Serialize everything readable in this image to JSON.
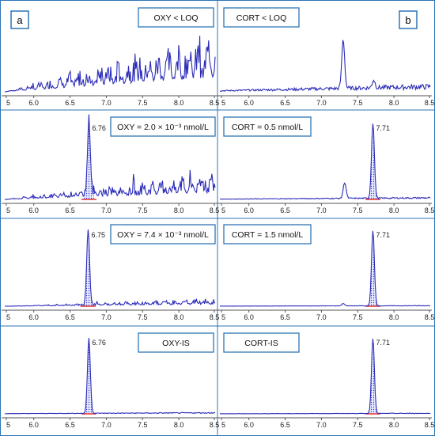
{
  "figure": {
    "panel_labels": [
      "a",
      "b"
    ]
  },
  "chart_data": [
    {
      "type": "line",
      "panel": "a",
      "row": 1,
      "annotation": "OXY < LOQ",
      "peak_label": "",
      "x_ticks": [
        "5",
        "6.0",
        "6.5",
        "7.0",
        "7.5",
        "8.0",
        "8.5"
      ],
      "xlim": [
        5.6,
        8.5
      ],
      "baseline": "noise",
      "noise_level": 0.75,
      "peaks": []
    },
    {
      "type": "line",
      "panel": "b",
      "row": 1,
      "annotation": "CORT < LOQ",
      "peak_label": "",
      "x_ticks": [
        "5",
        "6.0",
        "6.5",
        "7.0",
        "7.5",
        "8.0",
        "8.5"
      ],
      "xlim": [
        5.6,
        8.5
      ],
      "baseline": "flat",
      "noise_level": 0.1,
      "peaks": [
        {
          "rt": 7.3,
          "height": 0.62,
          "shaded": false
        },
        {
          "rt": 7.72,
          "height": 0.1,
          "shaded": false
        }
      ]
    },
    {
      "type": "line",
      "panel": "a",
      "row": 2,
      "annotation": "OXY = 2.0 × 10⁻³ nmol/L",
      "peak_label": "6.76",
      "x_ticks": [
        "5",
        "6.0",
        "6.5",
        "7.0",
        "7.5",
        "8.0",
        "8.5"
      ],
      "xlim": [
        5.6,
        8.5
      ],
      "baseline": "noise",
      "noise_level": 0.35,
      "peaks": [
        {
          "rt": 6.76,
          "height": 0.95,
          "shaded": true
        }
      ]
    },
    {
      "type": "line",
      "panel": "b",
      "row": 2,
      "annotation": "CORT = 0.5 nmol/L",
      "peak_label": "7.71",
      "x_ticks": [
        "5",
        "6.0",
        "6.5",
        "7.0",
        "7.5",
        "8.0",
        "8.5"
      ],
      "xlim": [
        5.6,
        8.5
      ],
      "baseline": "flat",
      "noise_level": 0.03,
      "peaks": [
        {
          "rt": 7.71,
          "height": 0.95,
          "shaded": true
        },
        {
          "rt": 7.32,
          "height": 0.2,
          "shaded": false
        }
      ]
    },
    {
      "type": "line",
      "panel": "a",
      "row": 3,
      "annotation": "OXY = 7.4 × 10⁻³ nmol/L",
      "peak_label": "6.75",
      "x_ticks": [
        "5",
        "6.0",
        "6.5",
        "7.0",
        "7.5",
        "8.0",
        "8.5"
      ],
      "xlim": [
        5.6,
        8.5
      ],
      "baseline": "noise",
      "noise_level": 0.1,
      "peaks": [
        {
          "rt": 6.75,
          "height": 0.95,
          "shaded": true
        }
      ]
    },
    {
      "type": "line",
      "panel": "b",
      "row": 3,
      "annotation": "CORT = 1.5 nmol/L",
      "peak_label": "7.71",
      "x_ticks": [
        "5",
        "6.0",
        "6.5",
        "7.0",
        "7.5",
        "8.0",
        "8.5"
      ],
      "xlim": [
        5.6,
        8.5
      ],
      "baseline": "flat",
      "noise_level": 0.01,
      "peaks": [
        {
          "rt": 7.71,
          "height": 0.95,
          "shaded": true
        },
        {
          "rt": 7.3,
          "height": 0.03,
          "shaded": false
        }
      ]
    },
    {
      "type": "line",
      "panel": "a",
      "row": 4,
      "annotation": "OXY-IS",
      "peak_label": "6.76",
      "x_ticks": [
        "5",
        "6.0",
        "6.5",
        "7.0",
        "7.5",
        "8.0",
        "8.5"
      ],
      "xlim": [
        5.6,
        8.5
      ],
      "baseline": "flat",
      "noise_level": 0.02,
      "peaks": [
        {
          "rt": 6.76,
          "height": 0.95,
          "shaded": true
        }
      ]
    },
    {
      "type": "line",
      "panel": "b",
      "row": 4,
      "annotation": "CORT-IS",
      "peak_label": "7.71",
      "x_ticks": [
        "5",
        "6.0",
        "6.5",
        "7.0",
        "7.5",
        "8.0",
        "8.5"
      ],
      "xlim": [
        5.6,
        8.5
      ],
      "baseline": "flat",
      "noise_level": 0.01,
      "peaks": [
        {
          "rt": 7.71,
          "height": 0.95,
          "shaded": true
        }
      ]
    }
  ]
}
